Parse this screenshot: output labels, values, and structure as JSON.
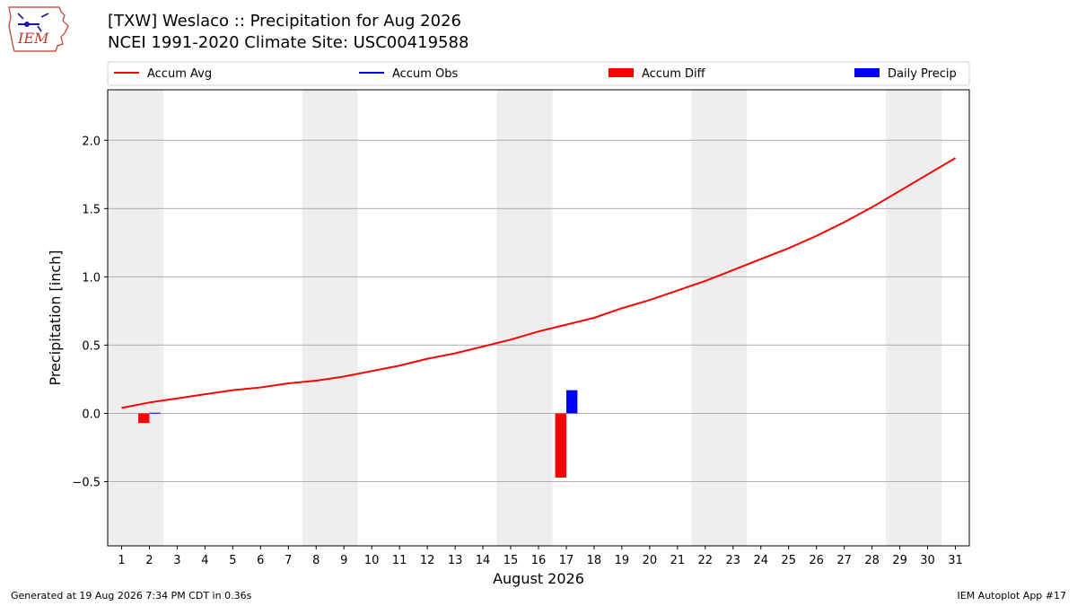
{
  "header": {
    "title_line1": "[TXW] Weslaco :: Precipitation for Aug 2026",
    "title_line2": "NCEI 1991-2020 Climate Site: USC00419588",
    "logo_text": "IEM"
  },
  "footer": {
    "left": "Generated at 19 Aug 2026 7:34 PM CDT in 0.36s",
    "right": "IEM Autoplot App #17"
  },
  "colors": {
    "avg": "#ff0000",
    "obs": "#0000ff",
    "diff": "#ff0000",
    "daily": "#0000ff",
    "weekend_band": "#eeeeee",
    "grid": "#b0b0b0"
  },
  "chart_data": {
    "type": "bar",
    "xlabel": "August 2026",
    "ylabel": "Precipitation [inch]",
    "xlim": [
      0.5,
      31.5
    ],
    "ylim": [
      -0.97,
      2.37
    ],
    "yticks": [
      -0.5,
      0.0,
      0.5,
      1.0,
      1.5,
      2.0
    ],
    "ytick_labels": [
      "−0.5",
      "0.0",
      "0.5",
      "1.0",
      "1.5",
      "2.0"
    ],
    "grid": "horizontal",
    "legend_position": "top, above plot",
    "legend": [
      "Accum Avg",
      "Accum Obs",
      "Accum Diff",
      "Daily Precip"
    ],
    "weekend_days": [
      1,
      2,
      8,
      9,
      15,
      16,
      22,
      23,
      29,
      30
    ],
    "days": [
      1,
      2,
      3,
      4,
      5,
      6,
      7,
      8,
      9,
      10,
      11,
      12,
      13,
      14,
      15,
      16,
      17,
      18,
      19,
      20,
      21,
      22,
      23,
      24,
      25,
      26,
      27,
      28,
      29,
      30,
      31
    ],
    "series": [
      {
        "name": "Accum Avg",
        "kind": "line",
        "values": [
          0.04,
          0.08,
          0.11,
          0.14,
          0.17,
          0.19,
          0.22,
          0.24,
          0.27,
          0.31,
          0.35,
          0.4,
          0.44,
          0.49,
          0.54,
          0.6,
          0.65,
          0.7,
          0.77,
          0.83,
          0.9,
          0.97,
          1.05,
          1.13,
          1.21,
          1.3,
          1.4,
          1.51,
          1.63,
          1.75,
          1.87
        ]
      },
      {
        "name": "Accum Obs",
        "kind": "line",
        "values": [
          0.0,
          0.0,
          0.0,
          0.0,
          0.0,
          0.0,
          0.0,
          0.0,
          0.0,
          0.0,
          0.0,
          0.0,
          0.0,
          0.0,
          0.0,
          0.0,
          0.17,
          0.17,
          0.17
        ]
      },
      {
        "name": "Accum Diff",
        "kind": "bar",
        "points": [
          {
            "day": 2,
            "value": -0.07
          },
          {
            "day": 17,
            "value": -0.47
          }
        ]
      },
      {
        "name": "Daily Precip",
        "kind": "bar",
        "points": [
          {
            "day": 2,
            "value": 0.005
          },
          {
            "day": 17,
            "value": 0.17
          }
        ]
      }
    ]
  }
}
